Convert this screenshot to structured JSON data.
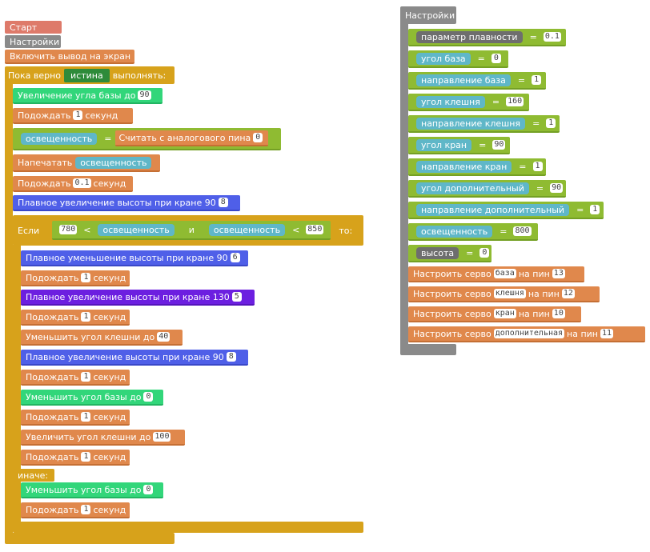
{
  "left": {
    "start_hat": "Старт",
    "setup_call": "Настройки",
    "enable_display": "Включить вывод на экран",
    "loop": {
      "prefix": "Пока верно",
      "condition": "истина",
      "suffix": "выполнять:"
    },
    "inc_base": {
      "label": "Увеличение угла базы до",
      "value": "90"
    },
    "wait1": {
      "label": "Подождать",
      "value": "1",
      "unit": "секунд"
    },
    "set_light": {
      "var": "освещенность",
      "eq": "=",
      "func": "Считать с аналогового пина",
      "pin": "0"
    },
    "print": {
      "label": "Напечатать",
      "var": "освещенность"
    },
    "wait2": {
      "label": "Подождать",
      "value": "0.1",
      "unit": "секунд"
    },
    "smooth_up1": {
      "label": "Плавное увеличение высоты при кране 90",
      "value": "8"
    },
    "if": {
      "label": "Если",
      "left_val": "780",
      "lt1": "<",
      "var1": "освещенность",
      "and": "и",
      "var2": "освещенность",
      "lt2": "<",
      "right_val": "850",
      "then": "то:"
    },
    "smooth_down": {
      "label": "Плавное уменьшение высоты при кране 90",
      "value": "6"
    },
    "wait3": {
      "label": "Подождать",
      "value": "1",
      "unit": "секунд"
    },
    "smooth_up2": {
      "label": "Плавное увеличение высоты при кране 130",
      "value": "5"
    },
    "wait4": {
      "label": "Подождать",
      "value": "1",
      "unit": "секунд"
    },
    "dec_claw": {
      "label": "Уменьшить угол клешни до",
      "value": "40"
    },
    "smooth_up3": {
      "label": "Плавное увеличение высоты при кране 90",
      "value": "8"
    },
    "wait5": {
      "label": "Подождать",
      "value": "1",
      "unit": "секунд"
    },
    "dec_base": {
      "label": "Уменьшить угол базы до",
      "value": "0"
    },
    "wait6": {
      "label": "Подождать",
      "value": "1",
      "unit": "секунд"
    },
    "inc_claw": {
      "label": "Увеличить угол клешни до",
      "value": "100"
    },
    "wait7": {
      "label": "Подождать",
      "value": "1",
      "unit": "секунд"
    },
    "else": "иначе:",
    "dec_base2": {
      "label": "Уменьшить угол базы до",
      "value": "0"
    },
    "wait8": {
      "label": "Подождать",
      "value": "1",
      "unit": "секунд"
    }
  },
  "right": {
    "hat": "Настройки",
    "rows": [
      {
        "var": "параметр плавности",
        "eq": "=",
        "value": "0.1"
      },
      {
        "var": "угол база",
        "eq": "=",
        "value": "0"
      },
      {
        "var": "направление база",
        "eq": "=",
        "value": "1"
      },
      {
        "var": "угол клешня",
        "eq": "=",
        "value": "160"
      },
      {
        "var": "направление клешня",
        "eq": "=",
        "value": "1"
      },
      {
        "var": "угол кран",
        "eq": "=",
        "value": "90"
      },
      {
        "var": "направление кран",
        "eq": "=",
        "value": "1"
      },
      {
        "var": "угол дополнительный",
        "eq": "=",
        "value": "90"
      },
      {
        "var": "направление дополнительный",
        "eq": "=",
        "value": "1"
      },
      {
        "var": "освещенность",
        "eq": "=",
        "value": "800"
      },
      {
        "var": "высота",
        "eq": "=",
        "value": "0"
      }
    ],
    "servos": [
      {
        "label": "Настроить серво",
        "name": "база",
        "pin_label": "на пин",
        "pin": "13"
      },
      {
        "label": "Настроить серво",
        "name": "клешня",
        "pin_label": "на пин",
        "pin": "12"
      },
      {
        "label": "Настроить серво",
        "name": "кран",
        "pin_label": "на пин",
        "pin": "10"
      },
      {
        "label": "Настроить серво",
        "name": "дополнительная",
        "pin_label": "на пин",
        "pin": "11"
      }
    ]
  }
}
